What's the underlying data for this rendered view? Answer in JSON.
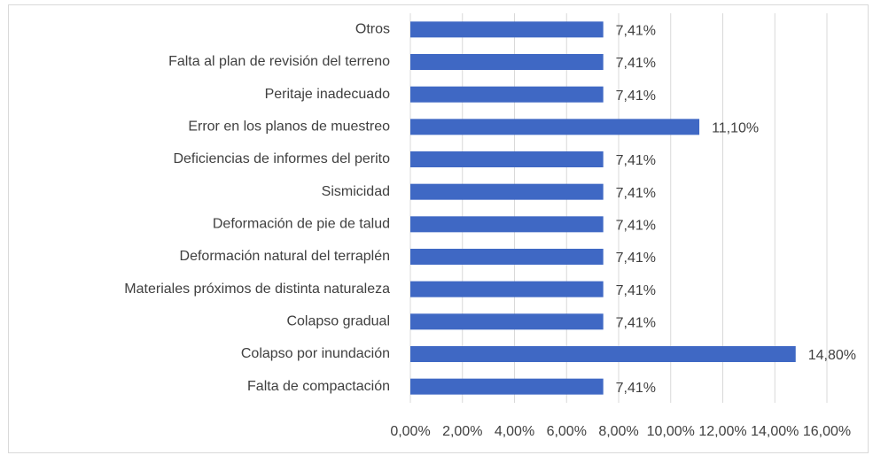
{
  "chart_data": {
    "type": "barh",
    "categories": [
      "Otros",
      "Falta al plan de revisión del terreno",
      "Peritaje inadecuado",
      "Error en los planos de muestreo",
      "Deficiencias de informes del perito",
      "Sismicidad",
      "Deformación de pie de talud",
      "Deformación natural del terraplén",
      "Materiales próximos de distinta naturaleza",
      "Colapso gradual",
      "Colapso por inundación",
      "Falta de compactación"
    ],
    "values": [
      7.41,
      7.41,
      7.41,
      11.1,
      7.41,
      7.41,
      7.41,
      7.41,
      7.41,
      7.41,
      14.8,
      7.41
    ],
    "value_labels": [
      "7,41%",
      "7,41%",
      "7,41%",
      "11,10%",
      "7,41%",
      "7,41%",
      "7,41%",
      "7,41%",
      "7,41%",
      "7,41%",
      "14,80%",
      "7,41%"
    ],
    "color": "#3f68c4",
    "xlim": [
      0,
      16
    ],
    "xticks": [
      {
        "value": 0,
        "label": "0,00%"
      },
      {
        "value": 2,
        "label": "2,00%"
      },
      {
        "value": 4,
        "label": "4,00%"
      },
      {
        "value": 6,
        "label": "6,00%"
      },
      {
        "value": 8,
        "label": "8,00%"
      },
      {
        "value": 10,
        "label": "10,00%"
      },
      {
        "value": 12,
        "label": "12,00%"
      },
      {
        "value": 14,
        "label": "14,00%"
      },
      {
        "value": 16,
        "label": "16,00%"
      }
    ],
    "grid": true
  }
}
